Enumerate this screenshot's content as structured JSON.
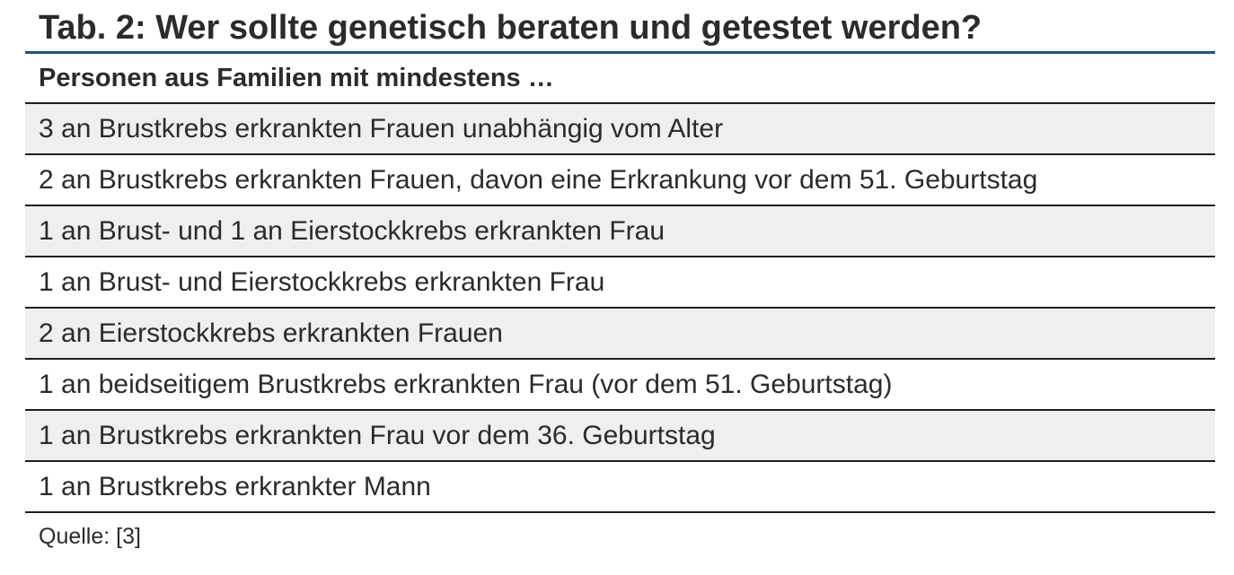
{
  "table": {
    "title": "Tab. 2: Wer sollte genetisch beraten und getestet werden?",
    "header": "Personen aus Familien mit mindestens …",
    "rows": [
      "3 an Brustkrebs erkrankten Frauen unabhängig vom Alter",
      "2 an Brustkrebs erkrankten Frauen, davon eine Erkrankung vor dem 51. Geburtstag",
      "1 an Brust- und 1 an Eierstockkrebs erkrankten Frau",
      "1 an Brust- und Eierstockkrebs erkrankten Frau",
      "2 an Eierstockkrebs erkrankten Frauen",
      "1 an beidseitigem Brustkrebs erkrankten Frau (vor dem 51. Geburtstag)",
      "1 an Brustkrebs erkrankten Frau vor dem 36. Geburtstag",
      "1 an Brustkrebs erkrankter Mann"
    ],
    "source": "Quelle: [3]"
  },
  "colors": {
    "title_rule": "#1f4e8c",
    "row_shade": "#f0eff0",
    "text": "#2b2b2b",
    "rule": "#1e1e1e"
  }
}
